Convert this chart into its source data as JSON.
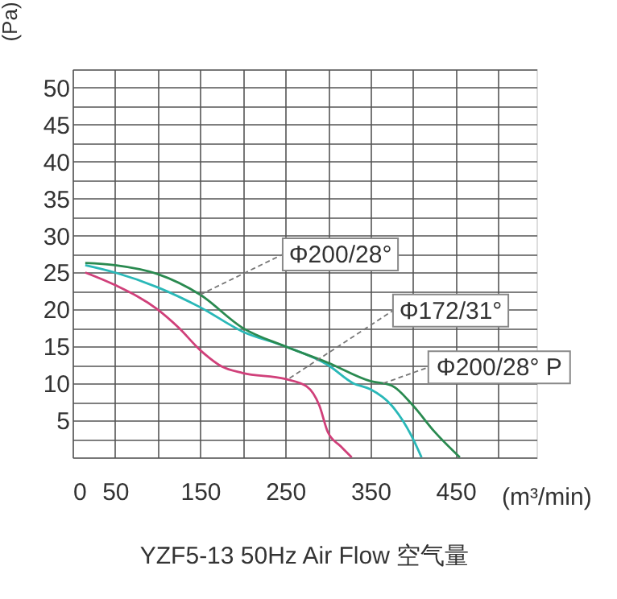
{
  "chart_data": {
    "type": "line",
    "title": "YZF5-13 50Hz  Air Flow 空气量",
    "xlabel": "(m³/min)",
    "ylabel": "(Pa)",
    "series": [
      {
        "color": "#d0407a",
        "x": [
          15,
          50,
          100,
          125,
          150,
          175,
          200,
          250,
          275,
          290,
          300,
          315,
          328
        ],
        "values": [
          25,
          23.3,
          20,
          17.5,
          14.5,
          12.3,
          11.4,
          10.6,
          9.6,
          7,
          3.4,
          1.5,
          0
        ]
      },
      {
        "color": "#2ab8b8",
        "x": [
          15,
          50,
          100,
          150,
          200,
          250,
          300,
          330,
          350,
          375,
          400,
          410
        ],
        "values": [
          26,
          25,
          23,
          20.3,
          17,
          15,
          12.5,
          10,
          9.2,
          7,
          2.5,
          0
        ]
      },
      {
        "color": "#2a8a50",
        "x": [
          15,
          50,
          100,
          150,
          200,
          250,
          300,
          350,
          375,
          400,
          425,
          455
        ],
        "values": [
          26.3,
          26,
          24.8,
          22,
          17.5,
          15,
          12.8,
          10.3,
          9.7,
          7,
          3.5,
          0
        ]
      }
    ],
    "annotations": [
      {
        "text": "Φ200/28°",
        "x": 150,
        "y": 22
      },
      {
        "text": "Φ172/31°",
        "x": 255,
        "y": 10.7
      },
      {
        "text": "Φ200/28° P",
        "x": 365,
        "y": 10
      }
    ],
    "xlim": [
      0,
      545
    ],
    "xticks": [
      0,
      50,
      {
        "value": 100,
        "label": null
      },
      150,
      {
        "value": 200,
        "label": null
      },
      250,
      {
        "value": 300,
        "label": null
      },
      350,
      {
        "value": 400,
        "label": null
      },
      450,
      {
        "value": 500,
        "label": null
      }
    ],
    "ylim": [
      0,
      52.5
    ],
    "yticks": [
      {
        "value": 0,
        "label": null
      },
      {
        "value": 2.5,
        "label": null
      },
      5,
      {
        "value": 7.5,
        "label": null
      },
      10,
      {
        "value": 12.5,
        "label": null
      },
      15,
      {
        "value": 17.5,
        "label": null
      },
      20,
      {
        "value": 22.5,
        "label": null
      },
      25,
      {
        "value": 27.5,
        "label": null
      },
      30,
      {
        "value": 32.5,
        "label": null
      },
      35,
      {
        "value": 37.5,
        "label": null
      },
      40,
      {
        "value": 42.5,
        "label": null
      },
      45,
      {
        "value": 47.5,
        "label": null
      },
      50,
      {
        "value": 52.5,
        "label": null
      }
    ],
    "grid": true,
    "marker": "none",
    "line_style": "solid"
  }
}
